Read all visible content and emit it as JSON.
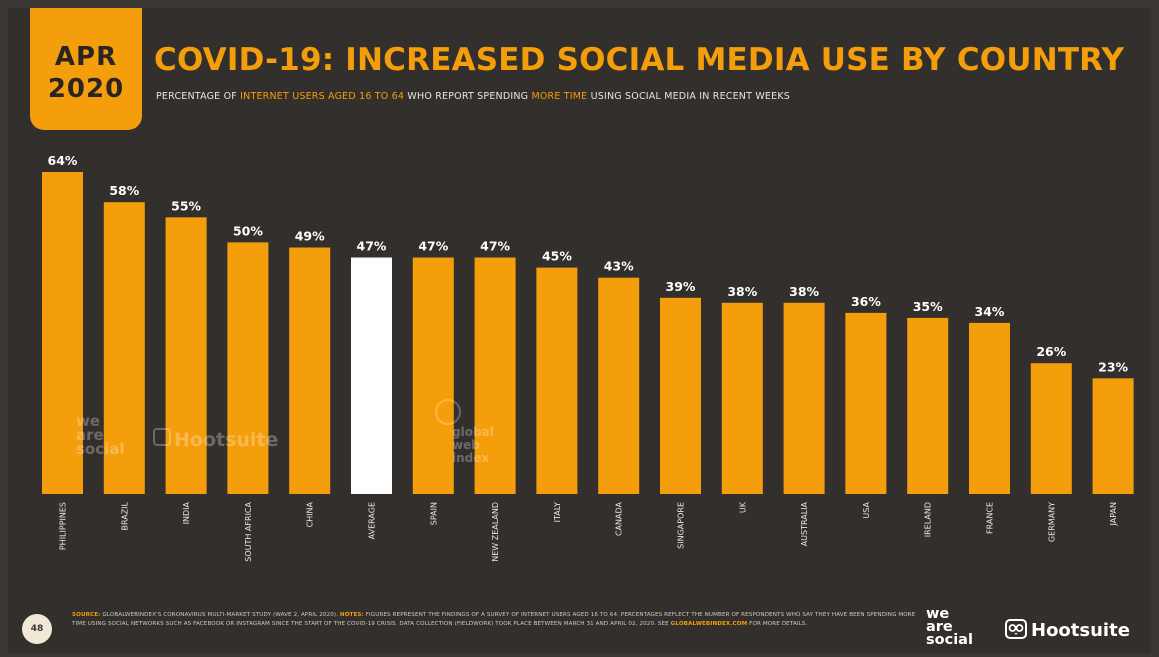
{
  "badge": {
    "line1": "APR",
    "line2": "2020"
  },
  "header": {
    "title": "COVID-19: INCREASED SOCIAL MEDIA USE BY COUNTRY",
    "subtitle_parts": [
      {
        "text": "PERCENTAGE OF ",
        "highlight": false
      },
      {
        "text": "INTERNET USERS AGED 16 TO 64",
        "highlight": true
      },
      {
        "text": " WHO REPORT SPENDING ",
        "highlight": false
      },
      {
        "text": "MORE TIME",
        "highlight": true
      },
      {
        "text": " USING SOCIAL MEDIA IN RECENT WEEKS",
        "highlight": false
      }
    ]
  },
  "colors": {
    "accent": "#f59e0b",
    "average": "#ffffff",
    "background": "#332f2c",
    "text": "#e8e4df"
  },
  "chart_data": {
    "type": "bar",
    "title": "COVID-19: INCREASED SOCIAL MEDIA USE BY COUNTRY",
    "categories": [
      "PHILIPPINES",
      "BRAZIL",
      "INDIA",
      "SOUTH AFRICA",
      "CHINA",
      "AVERAGE",
      "SPAIN",
      "NEW ZEALAND",
      "ITALY",
      "CANADA",
      "SINGAPORE",
      "UK",
      "AUSTRALIA",
      "USA",
      "IRELAND",
      "FRANCE",
      "GERMANY",
      "JAPAN"
    ],
    "values": [
      64,
      58,
      55,
      50,
      49,
      47,
      47,
      47,
      45,
      43,
      39,
      38,
      38,
      36,
      35,
      34,
      26,
      23
    ],
    "value_labels": [
      "64%",
      "58%",
      "55%",
      "50%",
      "49%",
      "47%",
      "47%",
      "47%",
      "45%",
      "43%",
      "39%",
      "38%",
      "38%",
      "36%",
      "35%",
      "34%",
      "26%",
      "23%"
    ],
    "highlight_category": "AVERAGE",
    "ylim": [
      0,
      64
    ],
    "grid": false,
    "legend": "none"
  },
  "watermarks": {
    "wearesocial": [
      "we",
      "are",
      "social"
    ],
    "hootsuite": "Hootsuite",
    "gwi": [
      "global",
      "web",
      "index"
    ]
  },
  "footer": {
    "page_number": "48",
    "source_key": "SOURCE:",
    "source_text": " GLOBALWEBINDEX'S CORONAVIRUS MULTI-MARKET STUDY (WAVE 2, APRIL 2020). ",
    "notes_key": "NOTES:",
    "notes_text": " FIGURES REPRESENT THE FINDINGS OF A SURVEY OF INTERNET USERS AGED 16 TO 64. PERCENTAGES REFLECT THE NUMBER OF RESPONDENTS WHO SAY THEY HAVE BEEN SPENDING MORE TIME USING SOCIAL NETWORKS SUCH AS FACEBOOK OR INSTAGRAM SINCE THE START OF THE COVID-19 CRISIS. DATA COLLECTION (FIELDWORK) TOOK PLACE BETWEEN MARCH 31 AND APRIL 02, 2020. SEE ",
    "link_text": "GLOBALWEBINDEX.COM",
    "tail_text": " FOR MORE DETAILS.",
    "logo_wearesocial": [
      "we",
      "are",
      "social"
    ],
    "logo_hootsuite": "Hootsuite"
  }
}
